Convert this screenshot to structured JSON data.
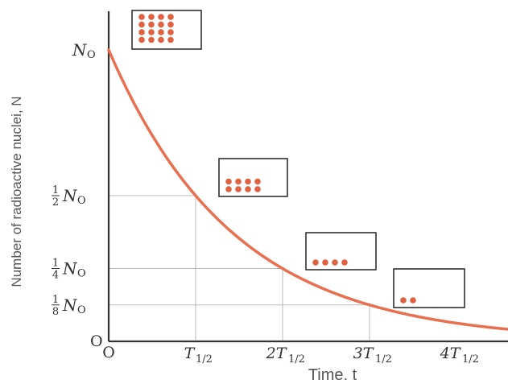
{
  "chart_data": {
    "type": "line",
    "title": "",
    "xlabel": "Time, t",
    "ylabel": "Number of radioactive nuclei, N",
    "x": [
      0,
      0.25,
      0.5,
      0.75,
      1,
      1.25,
      1.5,
      1.75,
      2,
      2.25,
      2.5,
      2.75,
      3,
      3.25,
      3.5,
      3.75,
      4,
      4.25,
      4.5,
      4.75
    ],
    "series": [
      {
        "values": [
          1,
          0.8409,
          0.7071,
          0.5946,
          0.5,
          0.4204,
          0.3536,
          0.2973,
          0.25,
          0.2102,
          0.1768,
          0.1487,
          0.125,
          0.1051,
          0.0884,
          0.0743,
          0.0625,
          0.0526,
          0.0442,
          0.0372
        ],
        "color": "#e87050"
      }
    ],
    "xlim": [
      0,
      4.75
    ],
    "ylim": [
      0,
      1
    ],
    "x_ticks": [
      {
        "value": 0,
        "base": "O",
        "sub": ""
      },
      {
        "value": 1,
        "base": "T",
        "sub": "1/2"
      },
      {
        "value": 2,
        "base": "2T",
        "sub": "1/2"
      },
      {
        "value": 3,
        "base": "3T",
        "sub": "1/2"
      },
      {
        "value": 4,
        "base": "4T",
        "sub": "1/2"
      }
    ],
    "y_ticks": [
      {
        "value": 1,
        "frac": "",
        "base": "N",
        "sub": "O"
      },
      {
        "value": 0.5,
        "frac": "1/2",
        "base": "N",
        "sub": "O"
      },
      {
        "value": 0.25,
        "frac": "1/4",
        "base": "N",
        "sub": "O"
      },
      {
        "value": 0.125,
        "frac": "1/8",
        "base": "N",
        "sub": "O"
      },
      {
        "value": 0,
        "frac": "",
        "base": "O",
        "sub": ""
      }
    ],
    "grid": "dropped guide lines at each half-life",
    "insets": [
      {
        "x": 0,
        "dots": 16
      },
      {
        "x": 1,
        "dots": 8
      },
      {
        "x": 2,
        "dots": 4
      },
      {
        "x": 3,
        "dots": 2
      }
    ],
    "colors": {
      "curve": "#e87050",
      "dots": "#e06040",
      "axis": "#333333",
      "guide": "#bbbbbb"
    }
  }
}
